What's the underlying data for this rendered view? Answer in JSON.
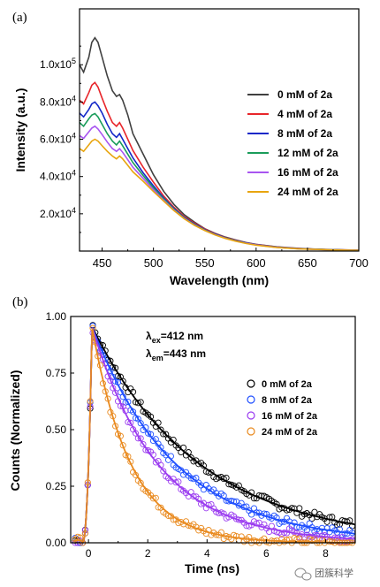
{
  "chart_data": [
    {
      "type": "line",
      "panel_label": "(a)",
      "xlabel": "Wavelength (nm)",
      "ylabel": "Intensity (a.u.)",
      "xlim": [
        428,
        700
      ],
      "ylim": [
        0,
        130000
      ],
      "xticks": [
        450,
        500,
        550,
        600,
        650,
        700
      ],
      "xtick_labels": [
        "450",
        "500",
        "550",
        "600",
        "650",
        "700"
      ],
      "yticks": [
        20000,
        40000,
        60000,
        80000,
        100000
      ],
      "ytick_labels": [
        {
          "base": "2.0x10",
          "exp": "4"
        },
        {
          "base": "4.0x10",
          "exp": "4"
        },
        {
          "base": "6.0x10",
          "exp": "4"
        },
        {
          "base": "8.0x10",
          "exp": "4"
        },
        {
          "base": "1.0x10",
          "exp": "5"
        }
      ],
      "legend_position": "right",
      "x": [
        428,
        432,
        437,
        440,
        443,
        446,
        450,
        455,
        460,
        464,
        467,
        470,
        475,
        480,
        490,
        500,
        510,
        520,
        530,
        540,
        550,
        560,
        570,
        580,
        590,
        600,
        620,
        640,
        660,
        680,
        700
      ],
      "series": [
        {
          "name": "0 mM of 2a",
          "color": "#404040",
          "values": [
            100000,
            96000,
            104000,
            112000,
            114500,
            112000,
            104000,
            94000,
            86000,
            83000,
            84000,
            81000,
            73000,
            63000,
            52000,
            41000,
            32000,
            25000,
            19500,
            15500,
            12000,
            9500,
            7500,
            6000,
            4600,
            3600,
            2300,
            1500,
            1000,
            700,
            500
          ]
        },
        {
          "name": "4 mM of 2a",
          "color": "#e8262b",
          "values": [
            81000,
            79000,
            85000,
            89000,
            90500,
            88000,
            82000,
            75000,
            69000,
            67000,
            69000,
            66000,
            60000,
            54000,
            45000,
            37000,
            29500,
            23500,
            18500,
            15000,
            11800,
            9300,
            7300,
            5800,
            4500,
            3500,
            2200,
            1400,
            950,
            650,
            450
          ]
        },
        {
          "name": "8 mM of 2a",
          "color": "#1428c8",
          "values": [
            74000,
            72000,
            76000,
            79000,
            80000,
            78000,
            74000,
            68000,
            63000,
            61000,
            63000,
            60000,
            55000,
            50000,
            42000,
            35000,
            28500,
            22800,
            18000,
            14500,
            11500,
            9100,
            7100,
            5600,
            4400,
            3400,
            2100,
            1350,
            900,
            620,
            430
          ]
        },
        {
          "name": "12 mM of 2a",
          "color": "#1a9c5a",
          "values": [
            69000,
            67000,
            71000,
            73000,
            73800,
            72000,
            68000,
            63000,
            59000,
            57000,
            59000,
            56500,
            52000,
            47500,
            40500,
            34000,
            28000,
            22500,
            17800,
            14300,
            11300,
            8900,
            7000,
            5500,
            4300,
            3300,
            2050,
            1300,
            880,
            600,
            420
          ]
        },
        {
          "name": "16 mM of 2a",
          "color": "#a855f0",
          "values": [
            62000,
            60500,
            64000,
            66000,
            67000,
            65500,
            62500,
            58500,
            55000,
            53500,
            55000,
            53000,
            49000,
            45000,
            39000,
            33000,
            27300,
            22000,
            17500,
            14000,
            11100,
            8800,
            6900,
            5400,
            4200,
            3250,
            2000,
            1280,
            860,
            590,
            410
          ]
        },
        {
          "name": "24 mM of 2a",
          "color": "#e8a50f",
          "values": [
            55000,
            53500,
            57000,
            59000,
            60000,
            59000,
            56500,
            53500,
            51000,
            49500,
            51000,
            49500,
            46000,
            42500,
            37500,
            32000,
            26800,
            21700,
            17300,
            13800,
            11000,
            8700,
            6800,
            5300,
            4100,
            3200,
            1950,
            1250,
            840,
            580,
            400
          ]
        }
      ]
    },
    {
      "type": "scatter",
      "panel_label": "(b)",
      "xlabel": "Time (ns)",
      "ylabel": "Counts (Normalized)",
      "xlim": [
        -0.6,
        9.0
      ],
      "ylim": [
        0,
        1.0
      ],
      "xticks": [
        0,
        2,
        4,
        6,
        8
      ],
      "xtick_labels": [
        "0",
        "2",
        "4",
        "6",
        "8"
      ],
      "yticks": [
        0,
        0.25,
        0.5,
        0.75,
        1.0
      ],
      "ytick_labels": [
        "0.00",
        "0.25",
        "0.50",
        "0.75",
        "1.00"
      ],
      "annotations": [
        {
          "symbol": "λ",
          "sub": "ex",
          "text": "=412 nm"
        },
        {
          "symbol": "λ",
          "sub": "em",
          "text": "=443 nm"
        }
      ],
      "legend_position": "right",
      "peak_time": 0.12,
      "series": [
        {
          "name": "0 mM of 2a",
          "color": "#000000",
          "lifetime_ns": 3.6
        },
        {
          "name": "8 mM of 2a",
          "color": "#1f4fff",
          "lifetime_ns": 2.8
        },
        {
          "name": "16 mM of 2a",
          "color": "#9b3cf0",
          "lifetime_ns": 2.2
        },
        {
          "name": "24 mM of 2a",
          "color": "#e98a1f",
          "lifetime_ns": 1.3
        }
      ]
    }
  ],
  "watermark": {
    "text": "团簇科学"
  }
}
